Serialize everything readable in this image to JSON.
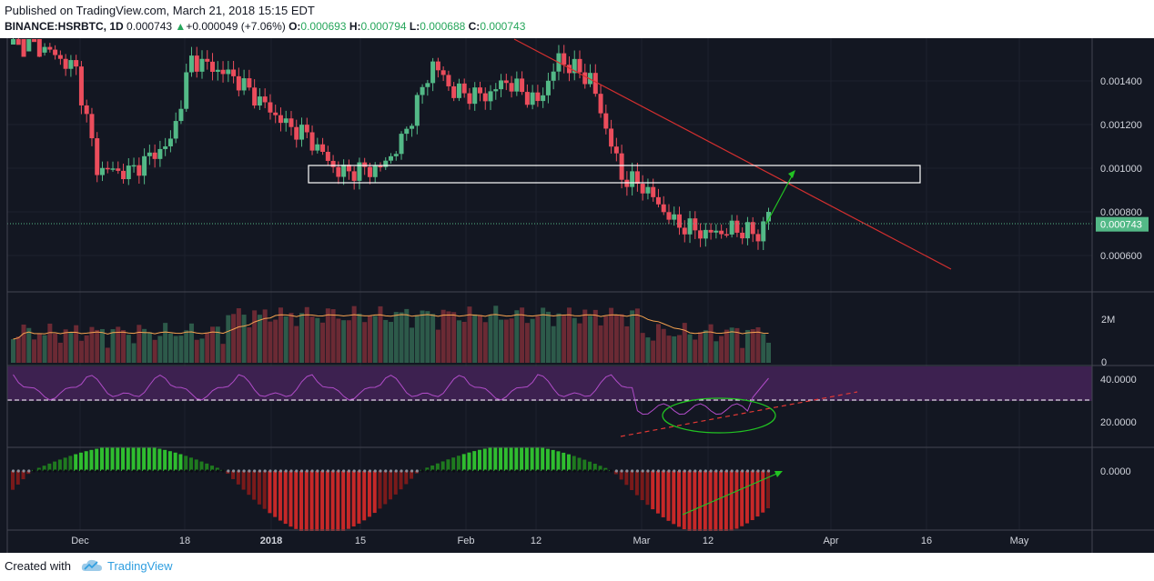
{
  "header": {
    "published": "Published on TradingView.com, March 21, 2018 15:15 EDT",
    "symbol": "BINANCE:HSRBTC, 1D",
    "last": "0.000743",
    "change": "+0.000049 (+7.06%)",
    "o_label": "O:",
    "o_value": "0.000693",
    "h_label": "H:",
    "h_value": "0.000794",
    "l_label": "L:",
    "l_value": "0.000688",
    "c_label": "C:",
    "c_value": "0.000743"
  },
  "footer": {
    "created": "Created with",
    "brand": "TradingView"
  },
  "colors": {
    "background": "#131722",
    "up": "#53b987",
    "down": "#eb4d5c",
    "trendline": "#d32f2f",
    "rsi_band": "#4a2a5c",
    "rsi_line": "#b04cc8",
    "volume_ma": "#f7a350",
    "price_line": "#53b987",
    "arrow": "#22c322"
  },
  "chart_data": [
    {
      "type": "candlestick",
      "pane": "price",
      "price_axis": [
        "0.001400",
        "0.001200",
        "0.001000",
        "0.000800",
        "0.000600"
      ],
      "y_values": [
        0.0014,
        0.0012,
        0.001,
        0.0008,
        0.0006
      ],
      "current_price_label": "0.000743",
      "current_price": 0.000743,
      "x_labels": [
        "Dec",
        "18",
        "2018",
        "15",
        "Feb",
        "12",
        "Mar",
        "12",
        "Apr",
        "16",
        "May"
      ],
      "annotations": [
        "horizontal resistance box 0.00093-0.001",
        "descending trendline",
        "green breakout arrow"
      ]
    },
    {
      "type": "bar",
      "pane": "volume",
      "axis_labels": [
        "2M",
        "0"
      ]
    },
    {
      "type": "line",
      "pane": "rsi",
      "axis_labels": [
        "40.0000",
        "20.0000"
      ],
      "y_values": [
        40,
        20
      ],
      "reference_level": 30,
      "annotations": [
        "green ellipse around RSI low",
        "red dashed rising trendline"
      ]
    },
    {
      "type": "bar",
      "pane": "momentum histogram",
      "axis_labels": [
        "0.0000"
      ],
      "annotations": [
        "green rising arrow along histogram lows"
      ]
    }
  ]
}
